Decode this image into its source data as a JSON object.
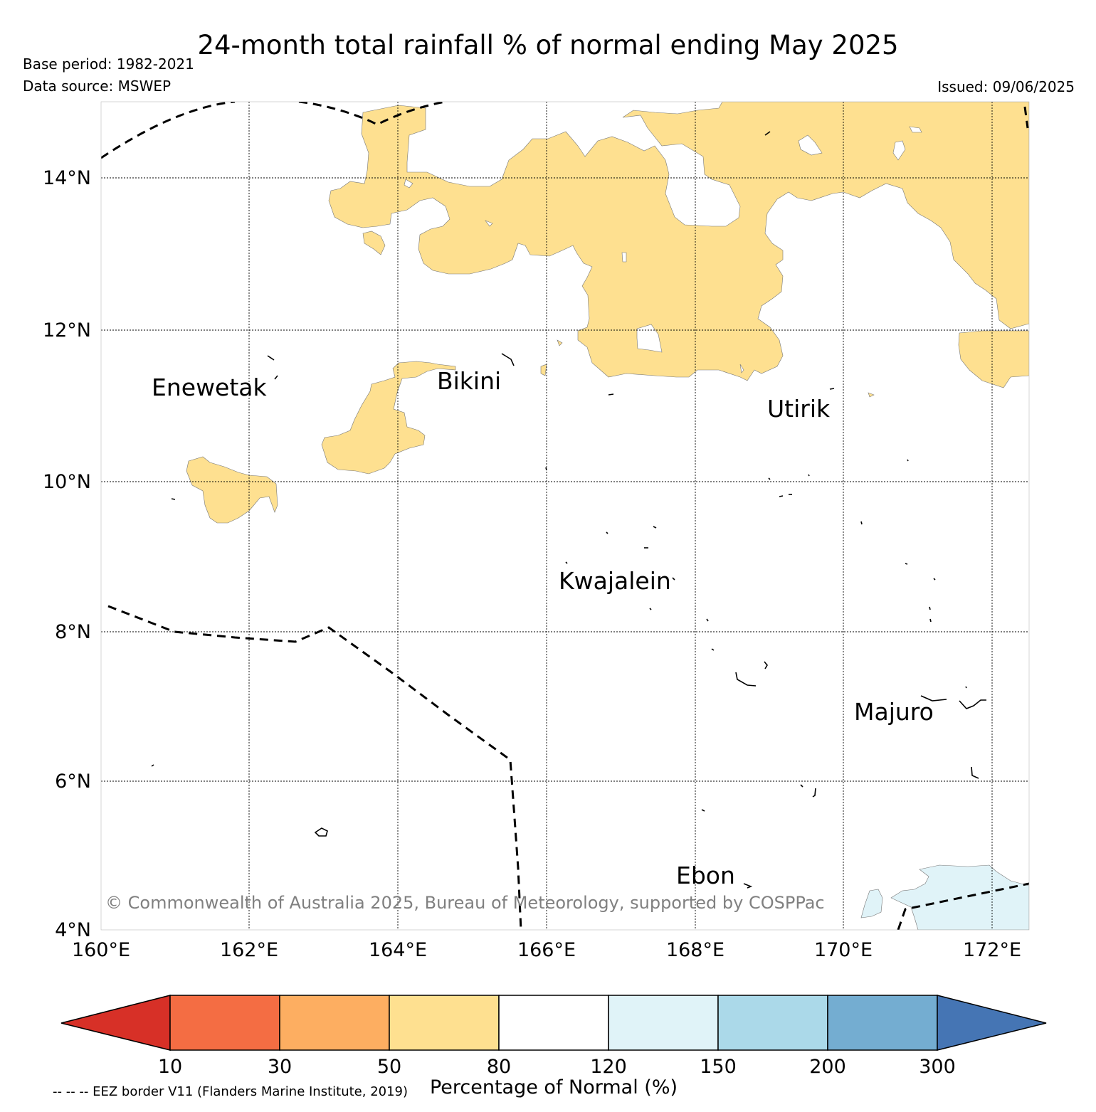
{
  "title": "24-month total rainfall % of normal ending May 2025",
  "base_period": "Base period: 1982-2021",
  "data_source": "Data source: MSWEP",
  "issued": "Issued: 09/06/2025",
  "lat_labels": [
    "14°N",
    "12°N",
    "10°N",
    "8°N",
    "6°N",
    "4°N"
  ],
  "lon_labels": [
    "160°E",
    "162°E",
    "164°E",
    "166°E",
    "168°E",
    "170°E",
    "172°E"
  ],
  "places": {
    "enewetak": "Enewetak",
    "bikini": "Bikini",
    "utirik": "Utirik",
    "kwajalein": "Kwajalein",
    "majuro": "Majuro",
    "ebon": "Ebon"
  },
  "copyright": "© Commonwealth of Australia 2025, Bureau of Meteorology, supported by COSPPac",
  "colorbar": {
    "title": "Percentage of Normal (%)",
    "ticks": [
      "10",
      "30",
      "50",
      "80",
      "120",
      "150",
      "200",
      "300"
    ],
    "colors": [
      "#d73027",
      "#f46d43",
      "#fdae61",
      "#fee090",
      "#ffffff",
      "#e0f3f8",
      "#abd9e9",
      "#74add1",
      "#4575b4"
    ]
  },
  "eez_note": "-- -- -- EEZ border V11 (Flanders Marine Institute, 2019)"
}
